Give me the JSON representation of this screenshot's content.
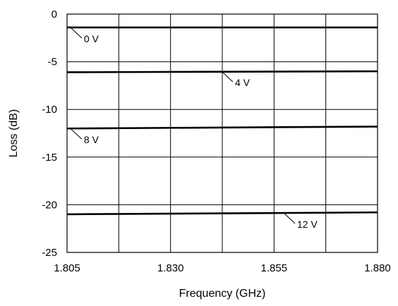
{
  "chart_data": {
    "type": "line",
    "xlabel": "Frequency (GHz)",
    "ylabel": "Loss (dB)",
    "xlim": [
      1.805,
      1.88
    ],
    "ylim": [
      -25,
      0
    ],
    "x_ticks": [
      1.805,
      1.83,
      1.855,
      1.88
    ],
    "x_tick_labels": [
      "1.805",
      "1.830",
      "1.855",
      "1.880"
    ],
    "y_ticks": [
      0,
      -5,
      -10,
      -15,
      -20,
      -25
    ],
    "y_tick_labels": [
      "0",
      "-5",
      "-10",
      "-15",
      "-20",
      "-25"
    ],
    "x_grid": [
      1.805,
      1.8175,
      1.83,
      1.8425,
      1.855,
      1.8675,
      1.88
    ],
    "y_grid": [
      0,
      -5,
      -10,
      -15,
      -20,
      -25
    ],
    "grid": true,
    "series": [
      {
        "name": "0 V",
        "x": [
          1.805,
          1.88
        ],
        "values": [
          -1.4,
          -1.4
        ],
        "label_anchor_x": 1.806,
        "label_anchor_y": -1.4
      },
      {
        "name": "4 V",
        "x": [
          1.805,
          1.88
        ],
        "values": [
          -6.1,
          -6.0
        ],
        "label_anchor_x": 1.8425,
        "label_anchor_y": -6.0
      },
      {
        "name": "8 V",
        "x": [
          1.805,
          1.88
        ],
        "values": [
          -12.0,
          -11.8
        ],
        "label_anchor_x": 1.806,
        "label_anchor_y": -12.0
      },
      {
        "name": "12 V",
        "x": [
          1.805,
          1.88
        ],
        "values": [
          -21.0,
          -20.8
        ],
        "label_anchor_x": 1.8575,
        "label_anchor_y": -20.85
      }
    ]
  }
}
